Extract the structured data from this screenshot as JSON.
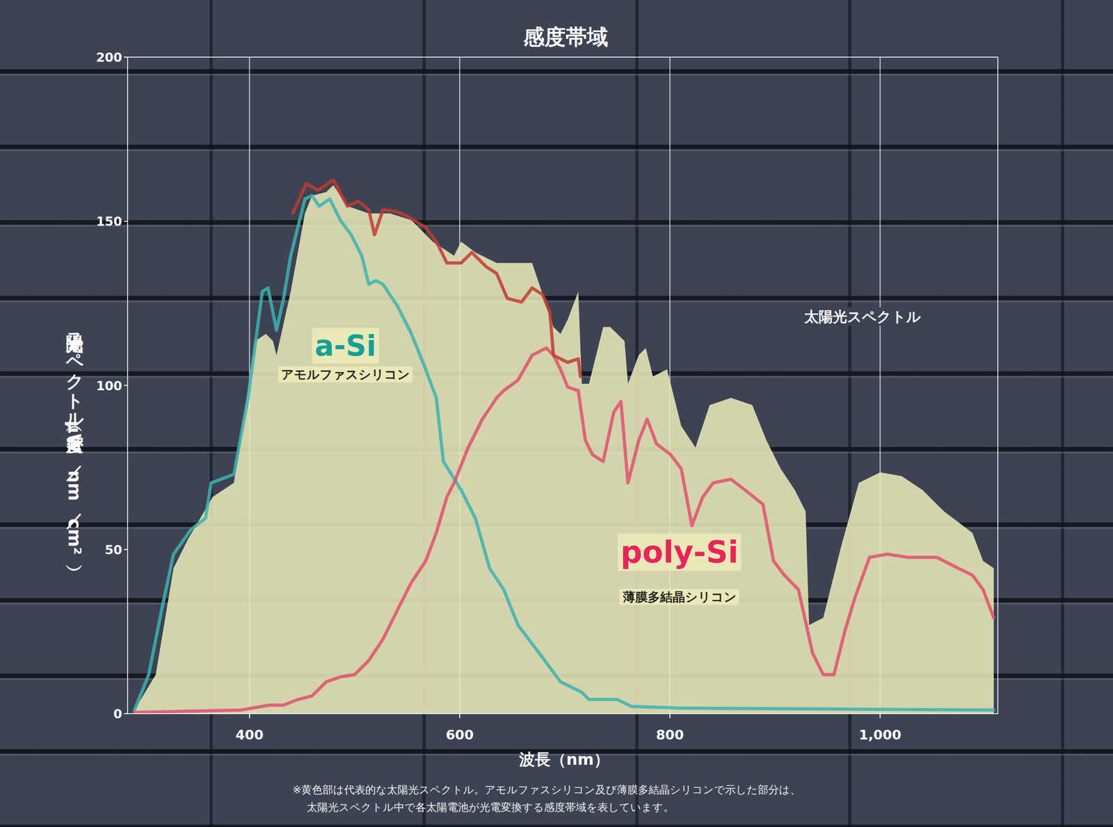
{
  "chart_data": {
    "type": "line",
    "title": "感度帯域",
    "x_label": "波長（nm）",
    "y_label": "太陽光スペクトル密度（μW／nm／cm²）",
    "xlim": [
      284,
      1112
    ],
    "ylim": [
      0,
      200
    ],
    "xticks": [
      400,
      600,
      800,
      {
        "value": 1000,
        "label": "1,000"
      }
    ],
    "yticks": [
      0,
      50,
      100,
      150,
      200
    ],
    "grid": true,
    "series": [
      {
        "name": "太陽光スペクトル",
        "type": "area",
        "color": "#e9e8b8",
        "x": [
          290.5,
          310.8,
          327.7,
          341.2,
          364.9,
          385.1,
          405.4,
          415.5,
          422.3,
          425.7,
          439.2,
          452.7,
          459.5,
          473,
          479.7,
          493.2,
          513.5,
          533.8,
          554.1,
          574.3,
          594.6,
          601.4,
          614.9,
          635.1,
          668.9,
          675.7,
          689.2,
          695.9,
          702.7,
          712.8,
          716.2,
          723,
          736.5,
          743.2,
          756.8,
          760.1,
          770.3,
          777,
          783.8,
          797.3,
          810.8,
          824.3,
          837.8,
          858.1,
          878.4,
          891.9,
          905.4,
          918.9,
          929.1,
          932.4,
          945.9,
          962.8,
          979.7,
          1000,
          1020.3,
          1040.5,
          1060.8,
          1087.8,
          1098,
          1108.1
        ],
        "values": [
          1.1,
          11.9,
          44.3,
          53,
          66,
          70.3,
          113.5,
          115.7,
          113.5,
          109.2,
          128.6,
          152.4,
          157.8,
          158.9,
          161,
          154.6,
          152.4,
          152.4,
          150.3,
          143.8,
          139.5,
          143.8,
          140.5,
          137.3,
          137.3,
          130.8,
          117.8,
          115.7,
          120,
          128.6,
          100.5,
          100.5,
          117.8,
          117.8,
          113.5,
          100.5,
          109.2,
          111.4,
          102.7,
          104.9,
          87.6,
          81.1,
          94,
          96.2,
          94,
          83.2,
          74.6,
          68.1,
          61.6,
          27,
          29.2,
          50.8,
          70.3,
          73.5,
          72.4,
          68.1,
          61.6,
          55.1,
          46.5,
          44.3
        ]
      },
      {
        "name": "a-Si",
        "type": "line",
        "color": "#3bb3b0",
        "x": [
          290.5,
          304.1,
          317.6,
          327.7,
          344.6,
          358.1,
          363.5,
          385.1,
          398.6,
          412.2,
          417.6,
          425.7,
          432.4,
          439.2,
          452.7,
          459.5,
          466.2,
          476.4,
          486.5,
          496.6,
          506.8,
          513.5,
          520.3,
          527,
          540.5,
          554.1,
          567.6,
          577.7,
          584.5,
          601.4,
          614.9,
          628.4,
          641.9,
          655.4,
          675.7,
          695.9,
          716.2,
          723,
          750,
          763.5,
          810.8,
          1108.1
        ],
        "values": [
          1.1,
          11.9,
          33.5,
          48.6,
          56.2,
          59.5,
          70.3,
          72.9,
          96.2,
          128.6,
          129.7,
          116.8,
          126.5,
          139.5,
          156.8,
          157.8,
          154.6,
          156.8,
          150.3,
          145.9,
          139.5,
          130.8,
          131.9,
          130.8,
          124.3,
          115.7,
          104.9,
          96.2,
          76.8,
          68.1,
          59.5,
          44.3,
          37.8,
          27,
          18.4,
          9.7,
          6.5,
          4.3,
          4.3,
          2.2,
          1.7,
          1.1
        ]
      },
      {
        "name": "poly-Si",
        "type": "line",
        "color": "#e0506e",
        "x": [
          290.5,
          391.9,
          418.9,
          432.4,
          445.9,
          459.5,
          473,
          486.5,
          500,
          513.5,
          527,
          540.5,
          554.1,
          567.6,
          577.7,
          587.8,
          594.6,
          608.1,
          621.6,
          635.1,
          641.9,
          655.4,
          668.9,
          682.4,
          689.2,
          695.9,
          702.7,
          712.8,
          719.6,
          726.4,
          736.5,
          746.6,
          753.4,
          760.1,
          770.3,
          778.4,
          787.2,
          800.7,
          810.8,
          820.9,
          831.1,
          841.2,
          858.1,
          871.6,
          888.5,
          898.6,
          908.8,
          922.3,
          935.8,
          945.9,
          956.1,
          966.2,
          976.4,
          989.9,
          1006.8,
          1027,
          1054.1,
          1074.3,
          1087.8,
          1098,
          1108.1
        ],
        "values": [
          0.4,
          1.1,
          2.6,
          2.6,
          4.3,
          5.4,
          9.7,
          11.2,
          11.9,
          16.2,
          22.7,
          31.4,
          40,
          46.5,
          55.1,
          66,
          70.3,
          81.1,
          89.7,
          96.2,
          98.4,
          101.6,
          109.2,
          111.4,
          109.2,
          104.9,
          99.5,
          98.4,
          83.2,
          78.9,
          76.8,
          91.9,
          95.1,
          70.3,
          83.2,
          89.7,
          82.2,
          78.9,
          74.6,
          57.3,
          65.9,
          70.3,
          71.4,
          68.1,
          63.8,
          46.5,
          42.2,
          37.8,
          18.4,
          11.9,
          11.9,
          24.9,
          35.7,
          47.6,
          48.6,
          47.6,
          47.6,
          44.3,
          42.2,
          37.8,
          29.2
        ]
      },
      {
        "name": null,
        "type": "line",
        "color": "#c23a32",
        "x": [
          441.2,
          454.1,
          464.9,
          479.7,
          493.2,
          503.4,
          513.5,
          518.9,
          527,
          540.5,
          550.7,
          567.6,
          577.7,
          587.8,
          601.4,
          611.5,
          625,
          635.1,
          645.3,
          658.8,
          668.9,
          679.1,
          685.8,
          689.2,
          695.9,
          702.7,
          712.8,
          714.9
        ],
        "values": [
          152.4,
          161.5,
          159.4,
          162.6,
          154.6,
          156.1,
          153.5,
          145.9,
          153.5,
          152.9,
          151.4,
          148.1,
          143.8,
          137.3,
          137.3,
          140.5,
          136.2,
          134.1,
          126.5,
          125.4,
          129.7,
          127.6,
          122.2,
          109.2,
          108.1,
          107,
          108.1,
          102.7
        ]
      }
    ],
    "annotations": [
      "アモルファスシリコン",
      "薄膜多結晶シリコン"
    ],
    "footnote": [
      "※黄色部は代表的な太陽光スペクトル。アモルファスシリコン及び薄膜多結晶シリコンで示した部分は、",
      "太陽光スペクトル中で各太陽電池が光電変換する感度帯域を表しています。"
    ]
  }
}
